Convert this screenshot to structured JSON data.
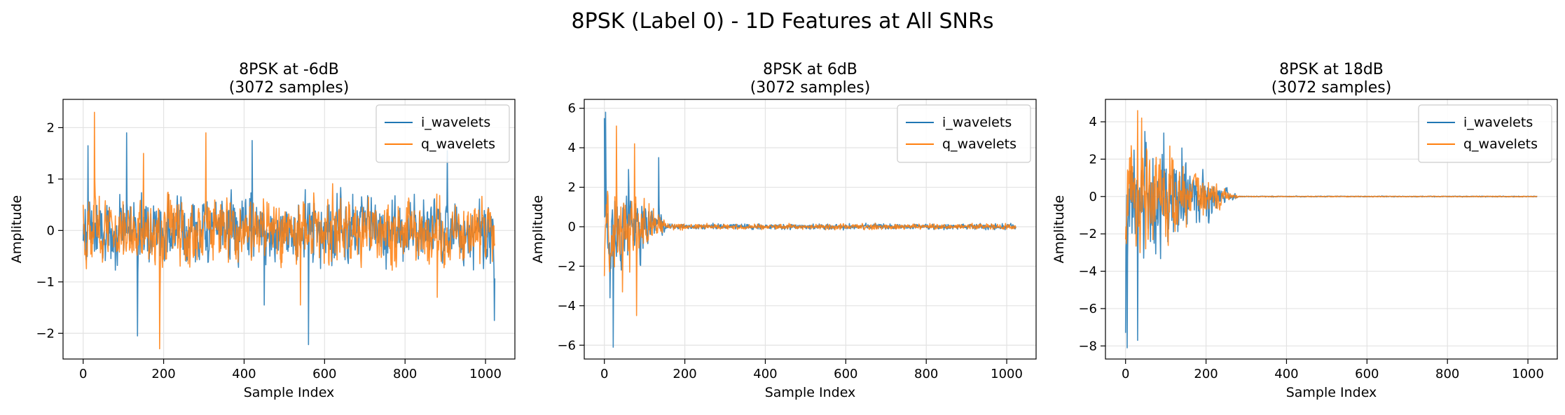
{
  "figure": {
    "title": "8PSK (Label 0) - 1D Features at All SNRs"
  },
  "chart_data": [
    {
      "type": "line",
      "title": "8PSK at -6dB",
      "subtitle": "(3072 samples)",
      "xlabel": "Sample Index",
      "ylabel": "Amplitude",
      "xlim": [
        -50,
        1073
      ],
      "ylim": [
        -2.5,
        2.55
      ],
      "xticks": [
        0,
        200,
        400,
        600,
        800,
        1000
      ],
      "yticks": [
        -2,
        -1,
        0,
        1,
        2
      ],
      "grid": true,
      "legend": "top-right",
      "noise_profile": {
        "base": 0.55,
        "peak": 0.55,
        "decay_end": 0,
        "floor": 0.55
      },
      "series": [
        {
          "name": "i_wavelets",
          "color": "#1f77b4",
          "start": -0.2,
          "extremes": [
            [
              12,
              1.65
            ],
            [
              108,
              1.9
            ],
            [
              135,
              -2.05
            ],
            [
              420,
              1.75
            ],
            [
              450,
              -1.45
            ],
            [
              560,
              -2.22
            ],
            [
              905,
              1.55
            ],
            [
              1022,
              -1.75
            ]
          ]
        },
        {
          "name": "q_wavelets",
          "color": "#ff7f0e",
          "start": 0.5,
          "extremes": [
            [
              28,
              2.3
            ],
            [
              150,
              1.5
            ],
            [
              190,
              -2.3
            ],
            [
              305,
              1.9
            ],
            [
              540,
              -1.45
            ],
            [
              880,
              -1.3
            ]
          ]
        }
      ]
    },
    {
      "type": "line",
      "title": "8PSK at 6dB",
      "subtitle": "(3072 samples)",
      "xlabel": "Sample Index",
      "ylabel": "Amplitude",
      "xlim": [
        -50,
        1073
      ],
      "ylim": [
        -6.7,
        6.45
      ],
      "xticks": [
        0,
        200,
        400,
        600,
        800,
        1000
      ],
      "yticks": [
        -6,
        -4,
        -2,
        0,
        2,
        4,
        6
      ],
      "grid": true,
      "legend": "top-right",
      "noise_profile": {
        "base": 1.6,
        "peak": 1.6,
        "decay_end": 150,
        "floor": 0.13
      },
      "series": [
        {
          "name": "i_wavelets",
          "color": "#1f77b4",
          "start": 5.5,
          "extremes": [
            [
              3,
              5.8
            ],
            [
              14,
              -3.6
            ],
            [
              22,
              -6.1
            ],
            [
              60,
              2.9
            ],
            [
              135,
              3.5
            ]
          ]
        },
        {
          "name": "q_wavelets",
          "color": "#ff7f0e",
          "start": -2.5,
          "extremes": [
            [
              30,
              5.1
            ],
            [
              45,
              -3.3
            ],
            [
              75,
              4.2
            ],
            [
              80,
              -4.5
            ]
          ]
        }
      ]
    },
    {
      "type": "line",
      "title": "8PSK at 18dB",
      "subtitle": "(3072 samples)",
      "xlabel": "Sample Index",
      "ylabel": "Amplitude",
      "xlim": [
        -50,
        1073
      ],
      "ylim": [
        -8.7,
        5.2
      ],
      "xticks": [
        0,
        200,
        400,
        600,
        800,
        1000
      ],
      "yticks": [
        -8,
        -6,
        -4,
        -2,
        0,
        2,
        4
      ],
      "grid": true,
      "legend": "top-right",
      "noise_profile": {
        "base": 1.6,
        "peak": 2.2,
        "decay_end": 280,
        "floor": 0.02
      },
      "series": [
        {
          "name": "i_wavelets",
          "color": "#1f77b4",
          "start": -7.3,
          "extremes": [
            [
              4,
              -8.1
            ],
            [
              30,
              -7.7
            ],
            [
              45,
              -3.3
            ],
            [
              95,
              3.4
            ],
            [
              140,
              2.6
            ]
          ]
        },
        {
          "name": "q_wavelets",
          "color": "#ff7f0e",
          "start": -2.3,
          "extremes": [
            [
              30,
              4.6
            ],
            [
              40,
              4.2
            ],
            [
              50,
              -2.8
            ],
            [
              110,
              2.7
            ]
          ]
        }
      ]
    }
  ]
}
